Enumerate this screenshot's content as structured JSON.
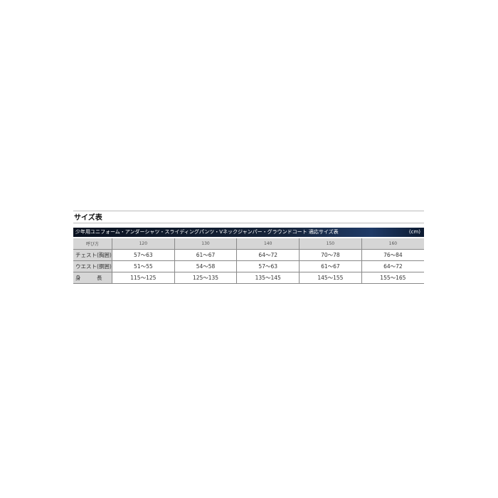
{
  "title": "サイズ表",
  "banner": {
    "text": "少年用ユニフォーム・アンダーシャツ・スライディングパンツ・Vネックジャンパー・グラウンドコート 適応サイズ表",
    "unit": "(cm)"
  },
  "table": {
    "header": [
      "呼び方",
      "120",
      "130",
      "140",
      "150",
      "160"
    ],
    "rows": [
      [
        "チェスト(胸囲)",
        "57〜63",
        "61〜67",
        "64〜72",
        "70〜78",
        "76〜84"
      ],
      [
        "ウエスト(胴囲)",
        "51〜55",
        "54〜58",
        "57〜63",
        "61〜67",
        "64〜72"
      ],
      [
        "身　　　長",
        "115〜125",
        "125〜135",
        "135〜145",
        "145〜155",
        "155〜165"
      ]
    ]
  }
}
